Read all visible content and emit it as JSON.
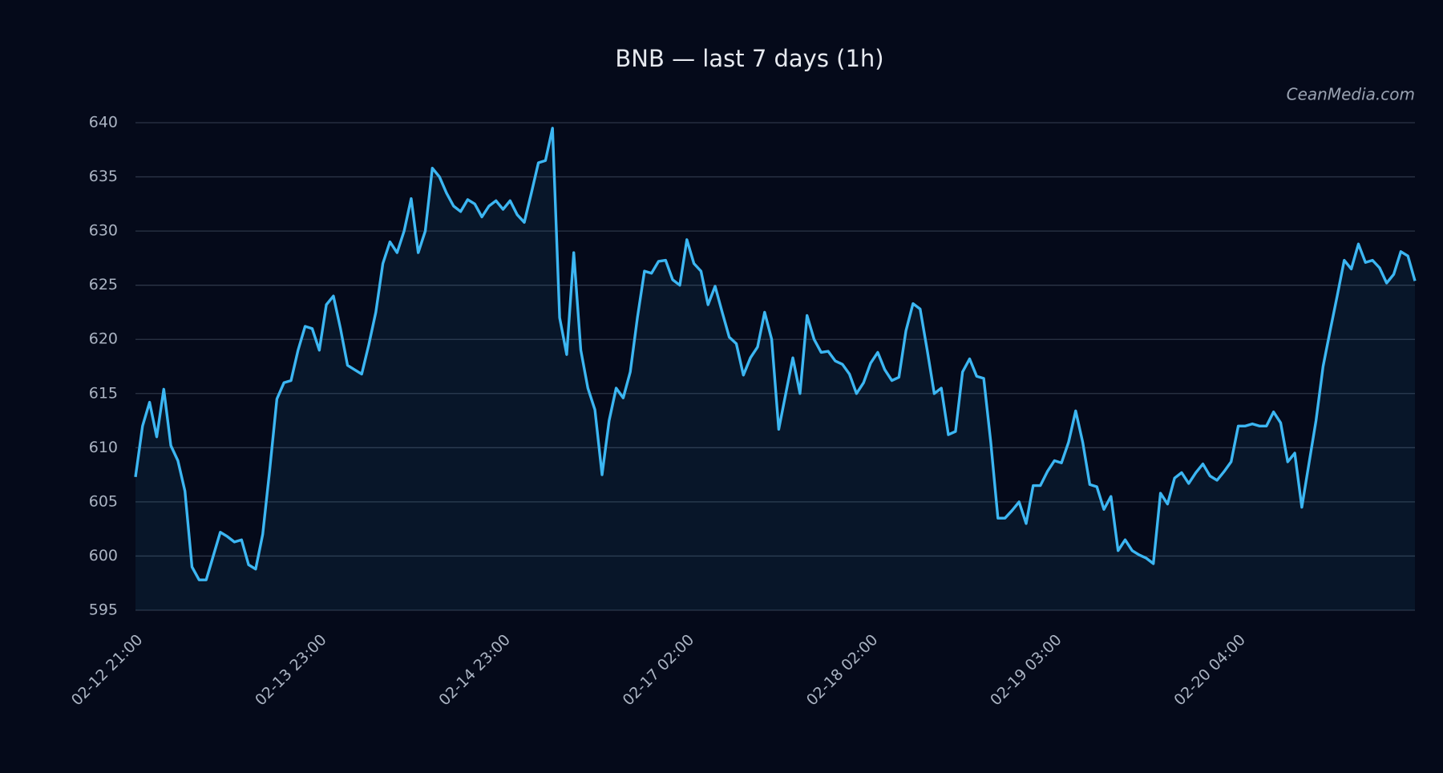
{
  "chart_data": {
    "type": "line",
    "title": "BNB — last 7 days (1h)",
    "source": "CeanMedia.com",
    "categories": [
      "02-12 21:00",
      null,
      null,
      null,
      null,
      null,
      null,
      null,
      null,
      null,
      null,
      null,
      null,
      null,
      null,
      null,
      null,
      null,
      null,
      null,
      null,
      null,
      null,
      null,
      null,
      null,
      "02-13 23:00",
      null,
      null,
      null,
      null,
      null,
      null,
      null,
      null,
      null,
      null,
      null,
      null,
      null,
      null,
      null,
      null,
      null,
      null,
      null,
      null,
      null,
      null,
      null,
      null,
      null,
      "02-14 23:00",
      null,
      null,
      null,
      null,
      null,
      null,
      null,
      null,
      null,
      null,
      null,
      null,
      null,
      null,
      null,
      null,
      null,
      null,
      null,
      null,
      null,
      null,
      null,
      null,
      null,
      "02-17 02:00",
      null,
      null,
      null,
      null,
      null,
      null,
      null,
      null,
      null,
      null,
      null,
      null,
      null,
      null,
      null,
      null,
      null,
      null,
      null,
      null,
      null,
      null,
      null,
      null,
      null,
      "02-18 02:00",
      null,
      null,
      null,
      null,
      null,
      null,
      null,
      null,
      null,
      null,
      null,
      null,
      null,
      null,
      null,
      null,
      null,
      null,
      null,
      null,
      null,
      null,
      null,
      null,
      null,
      "02-19 03:00",
      null,
      null,
      null,
      null,
      null,
      null,
      null,
      null,
      null,
      null,
      null,
      null,
      null,
      null,
      null,
      null,
      null,
      null,
      null,
      null,
      null,
      null,
      null,
      null,
      null,
      "02-20 04:00",
      null,
      null,
      null,
      null,
      null,
      null,
      null,
      null,
      null,
      null,
      null,
      null,
      null,
      null,
      null,
      null,
      null,
      null,
      null,
      null,
      null,
      null,
      null,
      null,
      null
    ],
    "values": [
      607.3,
      612,
      614.2,
      611,
      615.4,
      610.2,
      608.8,
      606,
      599,
      597.8,
      597.8,
      600,
      602.2,
      601.8,
      601.3,
      601.5,
      599.2,
      598.8,
      602,
      608,
      614.5,
      616,
      616.2,
      619,
      621.2,
      621,
      619,
      623.2,
      624,
      621,
      617.6,
      617.2,
      616.8,
      619.5,
      622.5,
      627,
      629,
      628,
      630,
      633,
      628,
      630,
      635.8,
      635,
      633.5,
      632.3,
      631.8,
      632.9,
      632.5,
      631.3,
      632.3,
      632.8,
      632,
      632.8,
      631.5,
      630.8,
      633.5,
      636.3,
      636.5,
      639.5,
      622,
      618.6,
      628,
      619,
      615.5,
      613.5,
      607.5,
      612.5,
      615.5,
      614.6,
      617,
      622,
      626.3,
      626.1,
      627.2,
      627.3,
      625.5,
      625,
      629.2,
      627,
      626.3,
      623.2,
      624.9,
      622.5,
      620.2,
      619.6,
      616.7,
      618.3,
      619.3,
      622.5,
      620,
      611.7,
      615,
      618.3,
      615,
      622.2,
      620,
      618.8,
      618.9,
      618,
      617.7,
      616.8,
      615,
      616,
      617.8,
      618.8,
      617.2,
      616.2,
      616.5,
      620.8,
      623.3,
      622.8,
      619,
      615,
      615.5,
      611.2,
      611.5,
      617,
      618.2,
      616.6,
      616.4,
      610.5,
      603.5,
      603.5,
      604.2,
      605,
      603,
      606.5,
      606.5,
      607.8,
      608.8,
      608.6,
      610.5,
      613.4,
      610.5,
      606.6,
      606.4,
      604.3,
      605.5,
      600.5,
      601.5,
      600.5,
      600.1,
      599.8,
      599.3,
      605.8,
      604.8,
      607.2,
      607.7,
      606.7,
      607.7,
      608.5,
      607.4,
      607,
      607.8,
      608.7,
      612,
      612,
      612.2,
      612,
      612,
      613.3,
      612.3,
      608.7,
      609.5,
      604.5,
      608.5,
      612.5,
      617.5,
      620.8,
      624,
      627.3,
      626.5,
      628.8,
      627.1,
      627.3,
      626.6,
      625.2,
      626,
      628.1,
      627.7,
      625.4
    ],
    "color": "#3cb6f2",
    "ylim": [
      595,
      640
    ],
    "yticks": [
      595,
      600,
      605,
      610,
      615,
      620,
      625,
      630,
      635,
      640
    ],
    "grid": true
  }
}
